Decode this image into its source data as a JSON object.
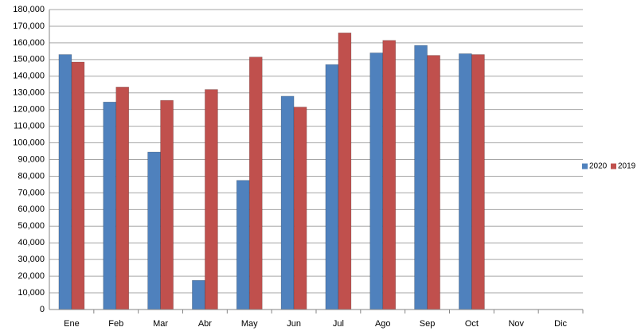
{
  "chart_data": {
    "type": "bar",
    "categories": [
      "Ene",
      "Feb",
      "Mar",
      "Abr",
      "May",
      "Jun",
      "Jul",
      "Ago",
      "Sep",
      "Oct",
      "Nov",
      "Dic"
    ],
    "series": [
      {
        "name": "2020",
        "color": "#4f81bd",
        "values": [
          153000,
          124500,
          94500,
          17500,
          77500,
          128000,
          147000,
          154000,
          158500,
          153500,
          null,
          null
        ]
      },
      {
        "name": "2019",
        "color": "#c0504d",
        "values": [
          148500,
          133500,
          125500,
          132000,
          151500,
          121500,
          166000,
          161500,
          152500,
          153000,
          null,
          null
        ]
      }
    ],
    "ylim": [
      0,
      180000
    ],
    "yticks": [
      0,
      {
        "value": 10000,
        "label": "10,000"
      },
      {
        "value": 20000,
        "label": "20,000"
      },
      {
        "value": 30000,
        "label": "30,000"
      },
      {
        "value": 40000,
        "label": "40,000"
      },
      {
        "value": 50000,
        "label": "50,000"
      },
      {
        "value": 60000,
        "label": "60,000"
      },
      {
        "value": 70000,
        "label": "70,000"
      },
      {
        "value": 80000,
        "label": "80,000"
      },
      {
        "value": 90000,
        "label": "90,000"
      },
      {
        "value": 100000,
        "label": "100,000"
      },
      {
        "value": 110000,
        "label": "110,000"
      },
      {
        "value": 120000,
        "label": "120,000"
      },
      {
        "value": 130000,
        "label": "130,000"
      },
      {
        "value": 140000,
        "label": "140,000"
      },
      {
        "value": 150000,
        "label": "150,000"
      },
      {
        "value": 160000,
        "label": "160,000"
      },
      {
        "value": 170000,
        "label": "170,000"
      },
      {
        "value": 180000,
        "label": "180,000"
      }
    ],
    "grid": true
  }
}
